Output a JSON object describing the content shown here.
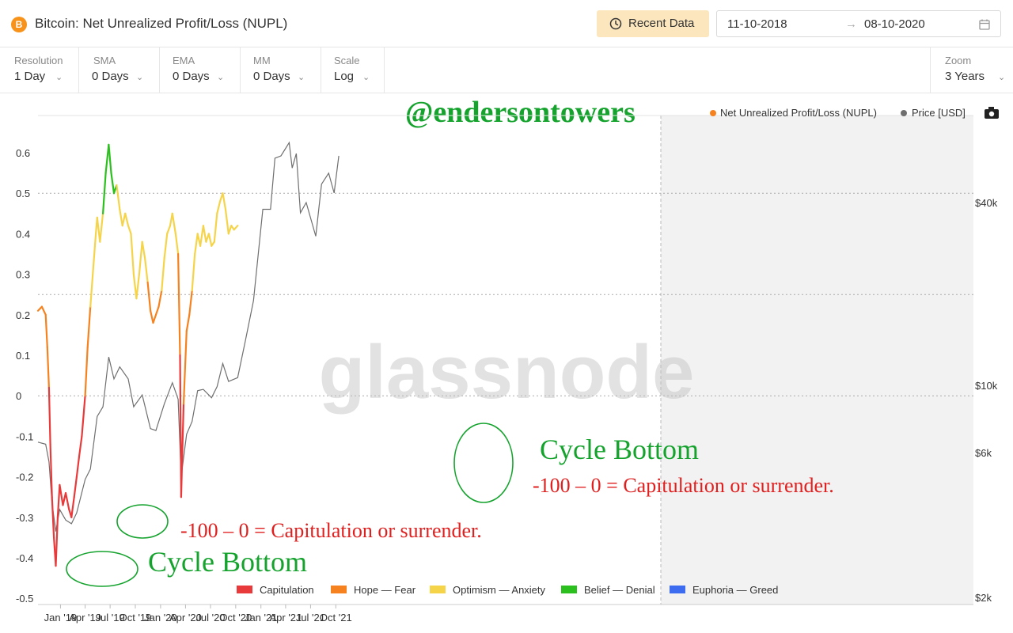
{
  "header": {
    "logo_glyph": "B",
    "title": "Bitcoin: Net Unrealized Profit/Loss (NUPL)",
    "recent_label": "Recent Data",
    "date_from": "11-10-2018",
    "date_to": "08-10-2020",
    "arrow_glyph": "→"
  },
  "settings": [
    {
      "label": "Resolution",
      "value": "1 Day"
    },
    {
      "label": "SMA",
      "value": "0 Days"
    },
    {
      "label": "EMA",
      "value": "0 Days"
    },
    {
      "label": "MM",
      "value": "0 Days"
    },
    {
      "label": "Scale",
      "value": "Log"
    }
  ],
  "zoom": {
    "label": "Zoom",
    "value": "3 Years"
  },
  "overlay_handle": "@endersontowers",
  "watermark": "glassnode",
  "annotations": {
    "cycle_bottom_1": "Cycle Bottom",
    "cycle_bottom_2": "Cycle Bottom",
    "capitulation_1": "-100 – 0 = Capitulation or surrender.",
    "capitulation_2": "-100 – 0 = Capitulation or surrender."
  },
  "colors": {
    "capitulation": "#e83a3a",
    "hope_fear": "#f5821f",
    "optimism_anxiety": "#f5d44a",
    "belief_denial": "#2cc01e",
    "euphoria_greed": "#3d6cf0",
    "price": "#6f6f6f",
    "nupl_legend": "#f5821f",
    "annotation_green": "#15a32e",
    "annotation_red": "#e01f1f"
  },
  "chart_data": {
    "type": "line",
    "title": "Bitcoin: Net Unrealized Profit/Loss (NUPL)",
    "ylabel": "",
    "xlabel": "",
    "ylim": [
      -0.5,
      0.65
    ],
    "y_ticks": [
      "0.6",
      "0.5",
      "0.4",
      "0.3",
      "0.2",
      "0.1",
      "0",
      "-0.1",
      "-0.2",
      "-0.3",
      "-0.4",
      "-0.5"
    ],
    "right_axis": {
      "scale": "log",
      "ticks": [
        "$40k",
        "$10k",
        "$6k",
        "$2k"
      ]
    },
    "x_ticks": [
      "Jan '19",
      "Apr '19",
      "Jul '19",
      "Oct '19",
      "Jan '20",
      "Apr '20",
      "Jul '20",
      "Oct '20",
      "Jan '21",
      "Apr '21",
      "Jul '21",
      "Oct '21"
    ],
    "legend_top": [
      {
        "name": "Net Unrealized Profit/Loss (NUPL)",
        "color": "#f5821f"
      },
      {
        "name": "Price [USD]",
        "color": "#6f6f6f"
      }
    ],
    "legend_bottom": [
      {
        "name": "Capitulation",
        "color": "#e83a3a"
      },
      {
        "name": "Hope — Fear",
        "color": "#f5821f"
      },
      {
        "name": "Optimism — Anxiety",
        "color": "#f5d44a"
      },
      {
        "name": "Belief — Denial",
        "color": "#2cc01e"
      },
      {
        "name": "Euphoria — Greed",
        "color": "#3d6cf0"
      }
    ],
    "grid": true,
    "selected_range": [
      "2018-10-11",
      "2020-10-08"
    ],
    "series": [
      {
        "name": "Net Unrealized Profit/Loss (NUPL)",
        "x": [
          "2018-10-11",
          "2018-10-25",
          "2018-11-08",
          "2018-11-14",
          "2018-11-20",
          "2018-11-25",
          "2018-12-01",
          "2018-12-08",
          "2018-12-15",
          "2018-12-22",
          "2018-12-29",
          "2019-01-10",
          "2019-01-20",
          "2019-02-01",
          "2019-02-10",
          "2019-02-20",
          "2019-03-01",
          "2019-03-10",
          "2019-03-20",
          "2019-04-01",
          "2019-04-10",
          "2019-04-20",
          "2019-05-01",
          "2019-05-10",
          "2019-05-15",
          "2019-05-25",
          "2019-06-05",
          "2019-06-15",
          "2019-06-26",
          "2019-07-05",
          "2019-07-15",
          "2019-07-25",
          "2019-08-05",
          "2019-08-15",
          "2019-08-25",
          "2019-09-05",
          "2019-09-15",
          "2019-09-25",
          "2019-10-05",
          "2019-10-15",
          "2019-10-26",
          "2019-11-05",
          "2019-11-15",
          "2019-11-25",
          "2019-12-05",
          "2019-12-15",
          "2019-12-25",
          "2020-01-05",
          "2020-01-15",
          "2020-01-25",
          "2020-02-05",
          "2020-02-13",
          "2020-02-25",
          "2020-03-05",
          "2020-03-12",
          "2020-03-16",
          "2020-03-25",
          "2020-04-05",
          "2020-04-15",
          "2020-04-25",
          "2020-05-05",
          "2020-05-15",
          "2020-05-25",
          "2020-06-05",
          "2020-06-15",
          "2020-06-25",
          "2020-07-05",
          "2020-07-15",
          "2020-07-25",
          "2020-08-05",
          "2020-08-15",
          "2020-08-25",
          "2020-09-05",
          "2020-09-15",
          "2020-09-25",
          "2020-10-08"
        ],
        "values": [
          0.21,
          0.22,
          0.2,
          0.12,
          0.02,
          -0.12,
          -0.25,
          -0.35,
          -0.42,
          -0.3,
          -0.22,
          -0.27,
          -0.24,
          -0.28,
          -0.3,
          -0.25,
          -0.2,
          -0.15,
          -0.1,
          0.0,
          0.12,
          0.22,
          0.32,
          0.4,
          0.44,
          0.38,
          0.45,
          0.55,
          0.62,
          0.55,
          0.5,
          0.52,
          0.46,
          0.42,
          0.45,
          0.42,
          0.4,
          0.3,
          0.24,
          0.3,
          0.38,
          0.34,
          0.28,
          0.21,
          0.18,
          0.2,
          0.22,
          0.26,
          0.34,
          0.4,
          0.42,
          0.45,
          0.4,
          0.35,
          0.1,
          -0.25,
          -0.02,
          0.16,
          0.2,
          0.26,
          0.35,
          0.4,
          0.37,
          0.42,
          0.38,
          0.4,
          0.37,
          0.38,
          0.45,
          0.48,
          0.5,
          0.46,
          0.4,
          0.42,
          0.41,
          0.42
        ]
      },
      {
        "name": "Price [USD]",
        "x": [
          "2018-10-11",
          "2018-11-08",
          "2018-11-20",
          "2018-12-01",
          "2018-12-15",
          "2018-12-29",
          "2019-01-20",
          "2019-02-10",
          "2019-03-01",
          "2019-04-01",
          "2019-04-20",
          "2019-05-15",
          "2019-06-05",
          "2019-06-26",
          "2019-07-15",
          "2019-08-05",
          "2019-09-05",
          "2019-09-25",
          "2019-10-26",
          "2019-11-25",
          "2019-12-15",
          "2020-01-15",
          "2020-02-13",
          "2020-03-05",
          "2020-03-16",
          "2020-04-05",
          "2020-04-25",
          "2020-05-15",
          "2020-06-05",
          "2020-07-05",
          "2020-07-25",
          "2020-08-15",
          "2020-09-05",
          "2020-10-08",
          "2020-11-05",
          "2020-12-05",
          "2021-01-08",
          "2021-02-05",
          "2021-02-21",
          "2021-03-15",
          "2021-04-14",
          "2021-04-25",
          "2021-05-10",
          "2021-05-25",
          "2021-06-15",
          "2021-07-20",
          "2021-08-10",
          "2021-09-05",
          "2021-09-25",
          "2021-10-12"
        ],
        "values": [
          6500,
          6400,
          5600,
          4100,
          3300,
          3900,
          3600,
          3500,
          3800,
          4900,
          5300,
          7900,
          8500,
          12400,
          10500,
          11500,
          10500,
          8500,
          9300,
          7200,
          7100,
          8700,
          10200,
          9000,
          5000,
          6900,
          7600,
          9600,
          9700,
          9100,
          9900,
          11800,
          10300,
          10600,
          14000,
          19000,
          38000,
          38000,
          56000,
          57000,
          63000,
          52000,
          58000,
          37000,
          40000,
          31000,
          46000,
          50000,
          43000,
          57000
        ]
      }
    ]
  }
}
